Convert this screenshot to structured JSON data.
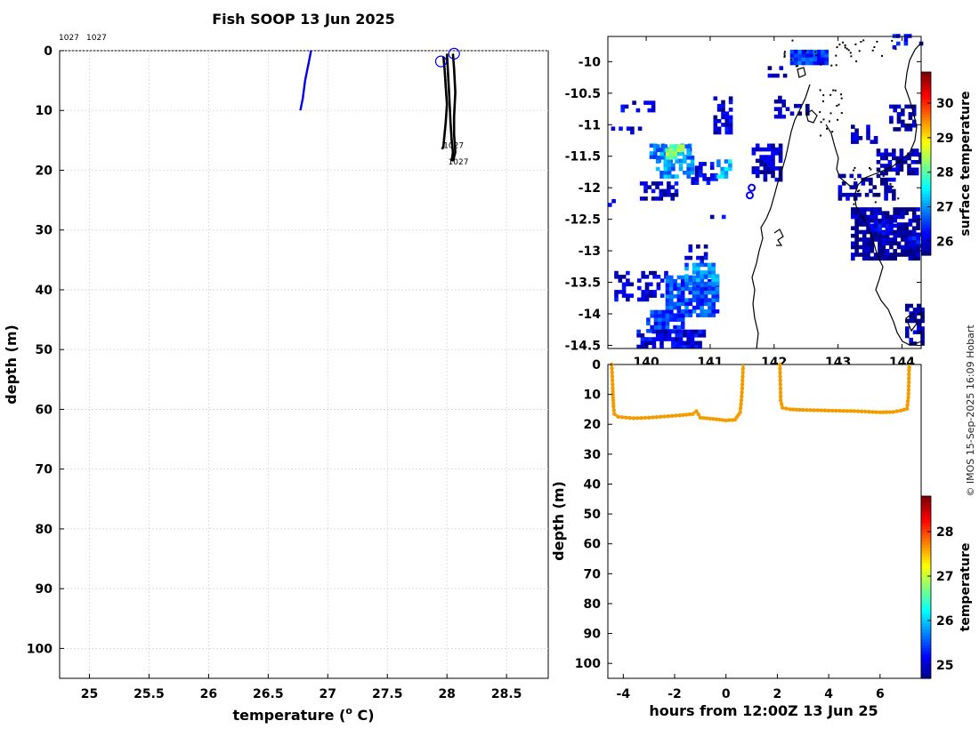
{
  "chart_data": [
    {
      "type": "line",
      "title": "Fish SOOP 13 Jun 2025",
      "xlabel": "temperature (",
      "xlabel_sup": "o",
      "xlabel_tail": " C)",
      "ylabel": "depth (m)",
      "xlim": [
        24.75,
        28.85
      ],
      "ylim": [
        0,
        105
      ],
      "xticks": [
        25,
        25.5,
        26,
        26.5,
        27,
        27.5,
        28,
        28.5
      ],
      "xtick_labels": [
        "25",
        "25.5",
        "26",
        "26.5",
        "27",
        "27.5",
        "28",
        "28.5"
      ],
      "yticks": [
        0,
        10,
        20,
        30,
        40,
        50,
        60,
        70,
        80,
        90,
        100
      ],
      "grid": true,
      "top_labels": [
        "1027",
        "1027"
      ],
      "profile_labels": [
        "1027",
        "1027"
      ],
      "series": [
        {
          "name": "blue profile",
          "color": "#0000ee",
          "points": [
            [
              26.86,
              0
            ],
            [
              26.84,
              2
            ],
            [
              26.81,
              5
            ],
            [
              26.79,
              8
            ],
            [
              26.77,
              10
            ]
          ]
        },
        {
          "name": "profile 1",
          "color": "#000000",
          "points": [
            [
              27.97,
              1
            ],
            [
              27.98,
              3
            ],
            [
              27.99,
              6
            ],
            [
              28.0,
              9
            ],
            [
              27.99,
              12
            ],
            [
              27.98,
              14
            ],
            [
              27.97,
              16
            ],
            [
              27.96,
              16.5
            ]
          ]
        },
        {
          "name": "profile 2",
          "color": "#000000",
          "points": [
            [
              28.0,
              0.5
            ],
            [
              28.01,
              4
            ],
            [
              28.02,
              8
            ],
            [
              28.03,
              12
            ],
            [
              28.04,
              15
            ],
            [
              28.05,
              17
            ],
            [
              28.04,
              18.5
            ]
          ]
        },
        {
          "name": "profile 3",
          "color": "#000000",
          "points": [
            [
              28.05,
              0.5
            ],
            [
              28.06,
              3
            ],
            [
              28.07,
              7
            ],
            [
              28.06,
              11
            ],
            [
              28.06,
              14
            ],
            [
              28.07,
              17
            ],
            [
              28.05,
              18.5
            ]
          ]
        }
      ],
      "start_markers": [
        [
          27.95,
          1.8
        ],
        [
          28.06,
          0.5
        ]
      ]
    },
    {
      "type": "heatmap",
      "ylim": [
        -14.55,
        -9.6
      ],
      "xlim": [
        139.4,
        144.3
      ],
      "yticks": [
        -10,
        -10.5,
        -11,
        -11.5,
        -12,
        -12.5,
        -13,
        -13.5,
        -14,
        -14.5
      ],
      "ytick_labels": [
        "-10",
        "-10.5",
        "-11",
        "-11.5",
        "-12",
        "-12.5",
        "-13",
        "-13.5",
        "-14",
        "-14.5"
      ],
      "xticks": [
        140,
        141,
        142,
        143,
        144
      ],
      "xtick_labels": [
        "140",
        "141",
        "142",
        "143",
        "144"
      ],
      "colorbar": {
        "label": "surface temperature",
        "ticks": [
          26,
          27,
          28,
          29,
          30
        ],
        "min": 25.6,
        "max": 30.9
      },
      "ship_markers": [
        [
          141.65,
          -12.0
        ],
        [
          141.62,
          -12.12
        ]
      ],
      "patches": [
        {
          "x": [
            139.45,
            139.9
          ],
          "y": [
            -11.15,
            -11.05
          ],
          "t": 26.0,
          "density": 0.5
        },
        {
          "x": [
            140.05,
            140.7
          ],
          "y": [
            -11.6,
            -11.3
          ],
          "t": 26.8,
          "density": 0.55
        },
        {
          "x": [
            139.6,
            140.1
          ],
          "y": [
            -10.8,
            -10.65
          ],
          "t": 26.1,
          "density": 0.4
        },
        {
          "x": [
            140.15,
            140.7
          ],
          "y": [
            -11.85,
            -11.35
          ],
          "t": 27.0,
          "density": 0.7
        },
        {
          "x": [
            140.3,
            140.55
          ],
          "y": [
            -11.55,
            -11.35
          ],
          "t": 28.2,
          "density": 0.8
        },
        {
          "x": [
            139.9,
            140.5
          ],
          "y": [
            -12.2,
            -11.9
          ],
          "t": 26.0,
          "density": 0.45
        },
        {
          "x": [
            141.05,
            141.35
          ],
          "y": [
            -11.15,
            -10.6
          ],
          "t": 26.0,
          "density": 0.55
        },
        {
          "x": [
            140.7,
            141.1
          ],
          "y": [
            -11.95,
            -11.6
          ],
          "t": 26.1,
          "density": 0.45
        },
        {
          "x": [
            141.1,
            141.3
          ],
          "y": [
            -11.85,
            -11.6
          ],
          "t": 27.2,
          "density": 0.5
        },
        {
          "x": [
            141.65,
            142.1
          ],
          "y": [
            -11.9,
            -11.35
          ],
          "t": 25.9,
          "density": 0.7
        },
        {
          "x": [
            142.25,
            142.85
          ],
          "y": [
            -10.05,
            -9.85
          ],
          "t": 26.6,
          "density": 0.9
        },
        {
          "x": [
            141.9,
            142.2
          ],
          "y": [
            -10.25,
            -10.1
          ],
          "t": 26.0,
          "density": 0.4
        },
        {
          "x": [
            142.0,
            142.2
          ],
          "y": [
            -10.9,
            -10.55
          ],
          "t": 25.9,
          "density": 0.45
        },
        {
          "x": [
            142.25,
            142.55
          ],
          "y": [
            -10.85,
            -10.7
          ],
          "t": 25.9,
          "density": 0.4
        },
        {
          "x": [
            143.2,
            143.6
          ],
          "y": [
            -11.3,
            -11.05
          ],
          "t": 25.9,
          "density": 0.55
        },
        {
          "x": [
            143.0,
            143.9
          ],
          "y": [
            -12.2,
            -11.8
          ],
          "t": 25.8,
          "density": 0.45
        },
        {
          "x": [
            143.6,
            144.3
          ],
          "y": [
            -11.8,
            -11.4
          ],
          "t": 25.8,
          "density": 0.6
        },
        {
          "x": [
            143.8,
            144.2
          ],
          "y": [
            -11.1,
            -10.7
          ],
          "t": 25.8,
          "density": 0.45
        },
        {
          "x": [
            143.2,
            144.25
          ],
          "y": [
            -13.15,
            -12.35
          ],
          "t": 25.7,
          "density": 0.8
        },
        {
          "x": [
            143.5,
            143.9
          ],
          "y": [
            -12.75,
            -12.55
          ],
          "t": 26.3,
          "density": 0.5
        },
        {
          "x": [
            144.1,
            144.3
          ],
          "y": [
            -12.95,
            -12.75
          ],
          "t": 26.2,
          "density": 0.6
        },
        {
          "x": [
            144.05,
            144.3
          ],
          "y": [
            -14.5,
            -13.85
          ],
          "t": 25.8,
          "density": 0.6
        },
        {
          "x": [
            139.5,
            140.3
          ],
          "y": [
            -13.8,
            -13.35
          ],
          "t": 26.0,
          "density": 0.4
        },
        {
          "x": [
            140.3,
            141.1
          ],
          "y": [
            -14.05,
            -13.4
          ],
          "t": 26.6,
          "density": 0.85
        },
        {
          "x": [
            140.6,
            141.1
          ],
          "y": [
            -13.55,
            -13.2
          ],
          "t": 26.9,
          "density": 0.6
        },
        {
          "x": [
            140.0,
            140.6
          ],
          "y": [
            -14.3,
            -13.95
          ],
          "t": 26.5,
          "density": 0.8
        },
        {
          "x": [
            139.85,
            140.9
          ],
          "y": [
            -14.55,
            -14.25
          ],
          "t": 26.1,
          "density": 0.85
        },
        {
          "x": [
            140.6,
            140.95
          ],
          "y": [
            -13.2,
            -12.95
          ],
          "t": 26.0,
          "density": 0.45
        },
        {
          "x": [
            141.0,
            141.25
          ],
          "y": [
            -12.55,
            -12.45
          ],
          "t": 26.0,
          "density": 0.4
        },
        {
          "x": [
            139.4,
            139.55
          ],
          "y": [
            -12.3,
            -12.2
          ],
          "t": 25.9,
          "density": 0.5
        },
        {
          "x": [
            143.85,
            144.3
          ],
          "y": [
            -9.8,
            -9.6
          ],
          "t": 26.2,
          "density": 0.4
        }
      ]
    },
    {
      "type": "scatter",
      "xlabel": "hours from 12:00Z 13 Jun 25",
      "ylabel": "depth (m)",
      "xlim": [
        -4.6,
        7.6
      ],
      "ylim": [
        0,
        105
      ],
      "xticks": [
        -4,
        -2,
        0,
        2,
        4,
        6
      ],
      "xtick_labels": [
        "-4",
        "-2",
        "0",
        "2",
        "4",
        "6"
      ],
      "yticks": [
        0,
        10,
        20,
        30,
        40,
        50,
        60,
        70,
        80,
        90,
        100
      ],
      "colorbar": {
        "label": "temperature",
        "ticks": [
          25,
          26,
          27,
          28
        ],
        "min": 24.7,
        "max": 28.8
      },
      "series": [
        {
          "name": "tow 1",
          "color": "#f39c00",
          "points": [
            [
              -4.45,
              0
            ],
            [
              -4.43,
              4
            ],
            [
              -4.41,
              8
            ],
            [
              -4.4,
              11
            ],
            [
              -4.38,
              14
            ],
            [
              -4.35,
              16.5
            ],
            [
              -4.2,
              17.5
            ],
            [
              -3.6,
              18
            ],
            [
              -3.0,
              17.8
            ],
            [
              -2.4,
              17.4
            ],
            [
              -1.8,
              17.0
            ],
            [
              -1.3,
              16.6
            ],
            [
              -1.15,
              15.6
            ],
            [
              -1.0,
              17.8
            ],
            [
              -0.5,
              18.2
            ],
            [
              0.0,
              18.7
            ],
            [
              0.35,
              18.5
            ],
            [
              0.55,
              16
            ],
            [
              0.6,
              12
            ],
            [
              0.63,
              8
            ],
            [
              0.65,
              4
            ],
            [
              0.67,
              0
            ]
          ]
        },
        {
          "name": "tow 2",
          "color": "#f39c00",
          "points": [
            [
              2.1,
              0
            ],
            [
              2.11,
              4
            ],
            [
              2.12,
              8
            ],
            [
              2.13,
              12
            ],
            [
              2.2,
              14.5
            ],
            [
              2.5,
              15
            ],
            [
              3.0,
              15.2
            ],
            [
              4.0,
              15.4
            ],
            [
              5.0,
              15.6
            ],
            [
              6.0,
              16.0
            ],
            [
              6.5,
              15.9
            ],
            [
              6.8,
              15.4
            ],
            [
              7.05,
              14.8
            ],
            [
              7.1,
              11
            ],
            [
              7.12,
              6
            ],
            [
              7.13,
              2
            ],
            [
              7.14,
              0
            ]
          ]
        }
      ]
    }
  ],
  "watermark": "© IMOS 15-Sep-2025 16:09 Hobart"
}
